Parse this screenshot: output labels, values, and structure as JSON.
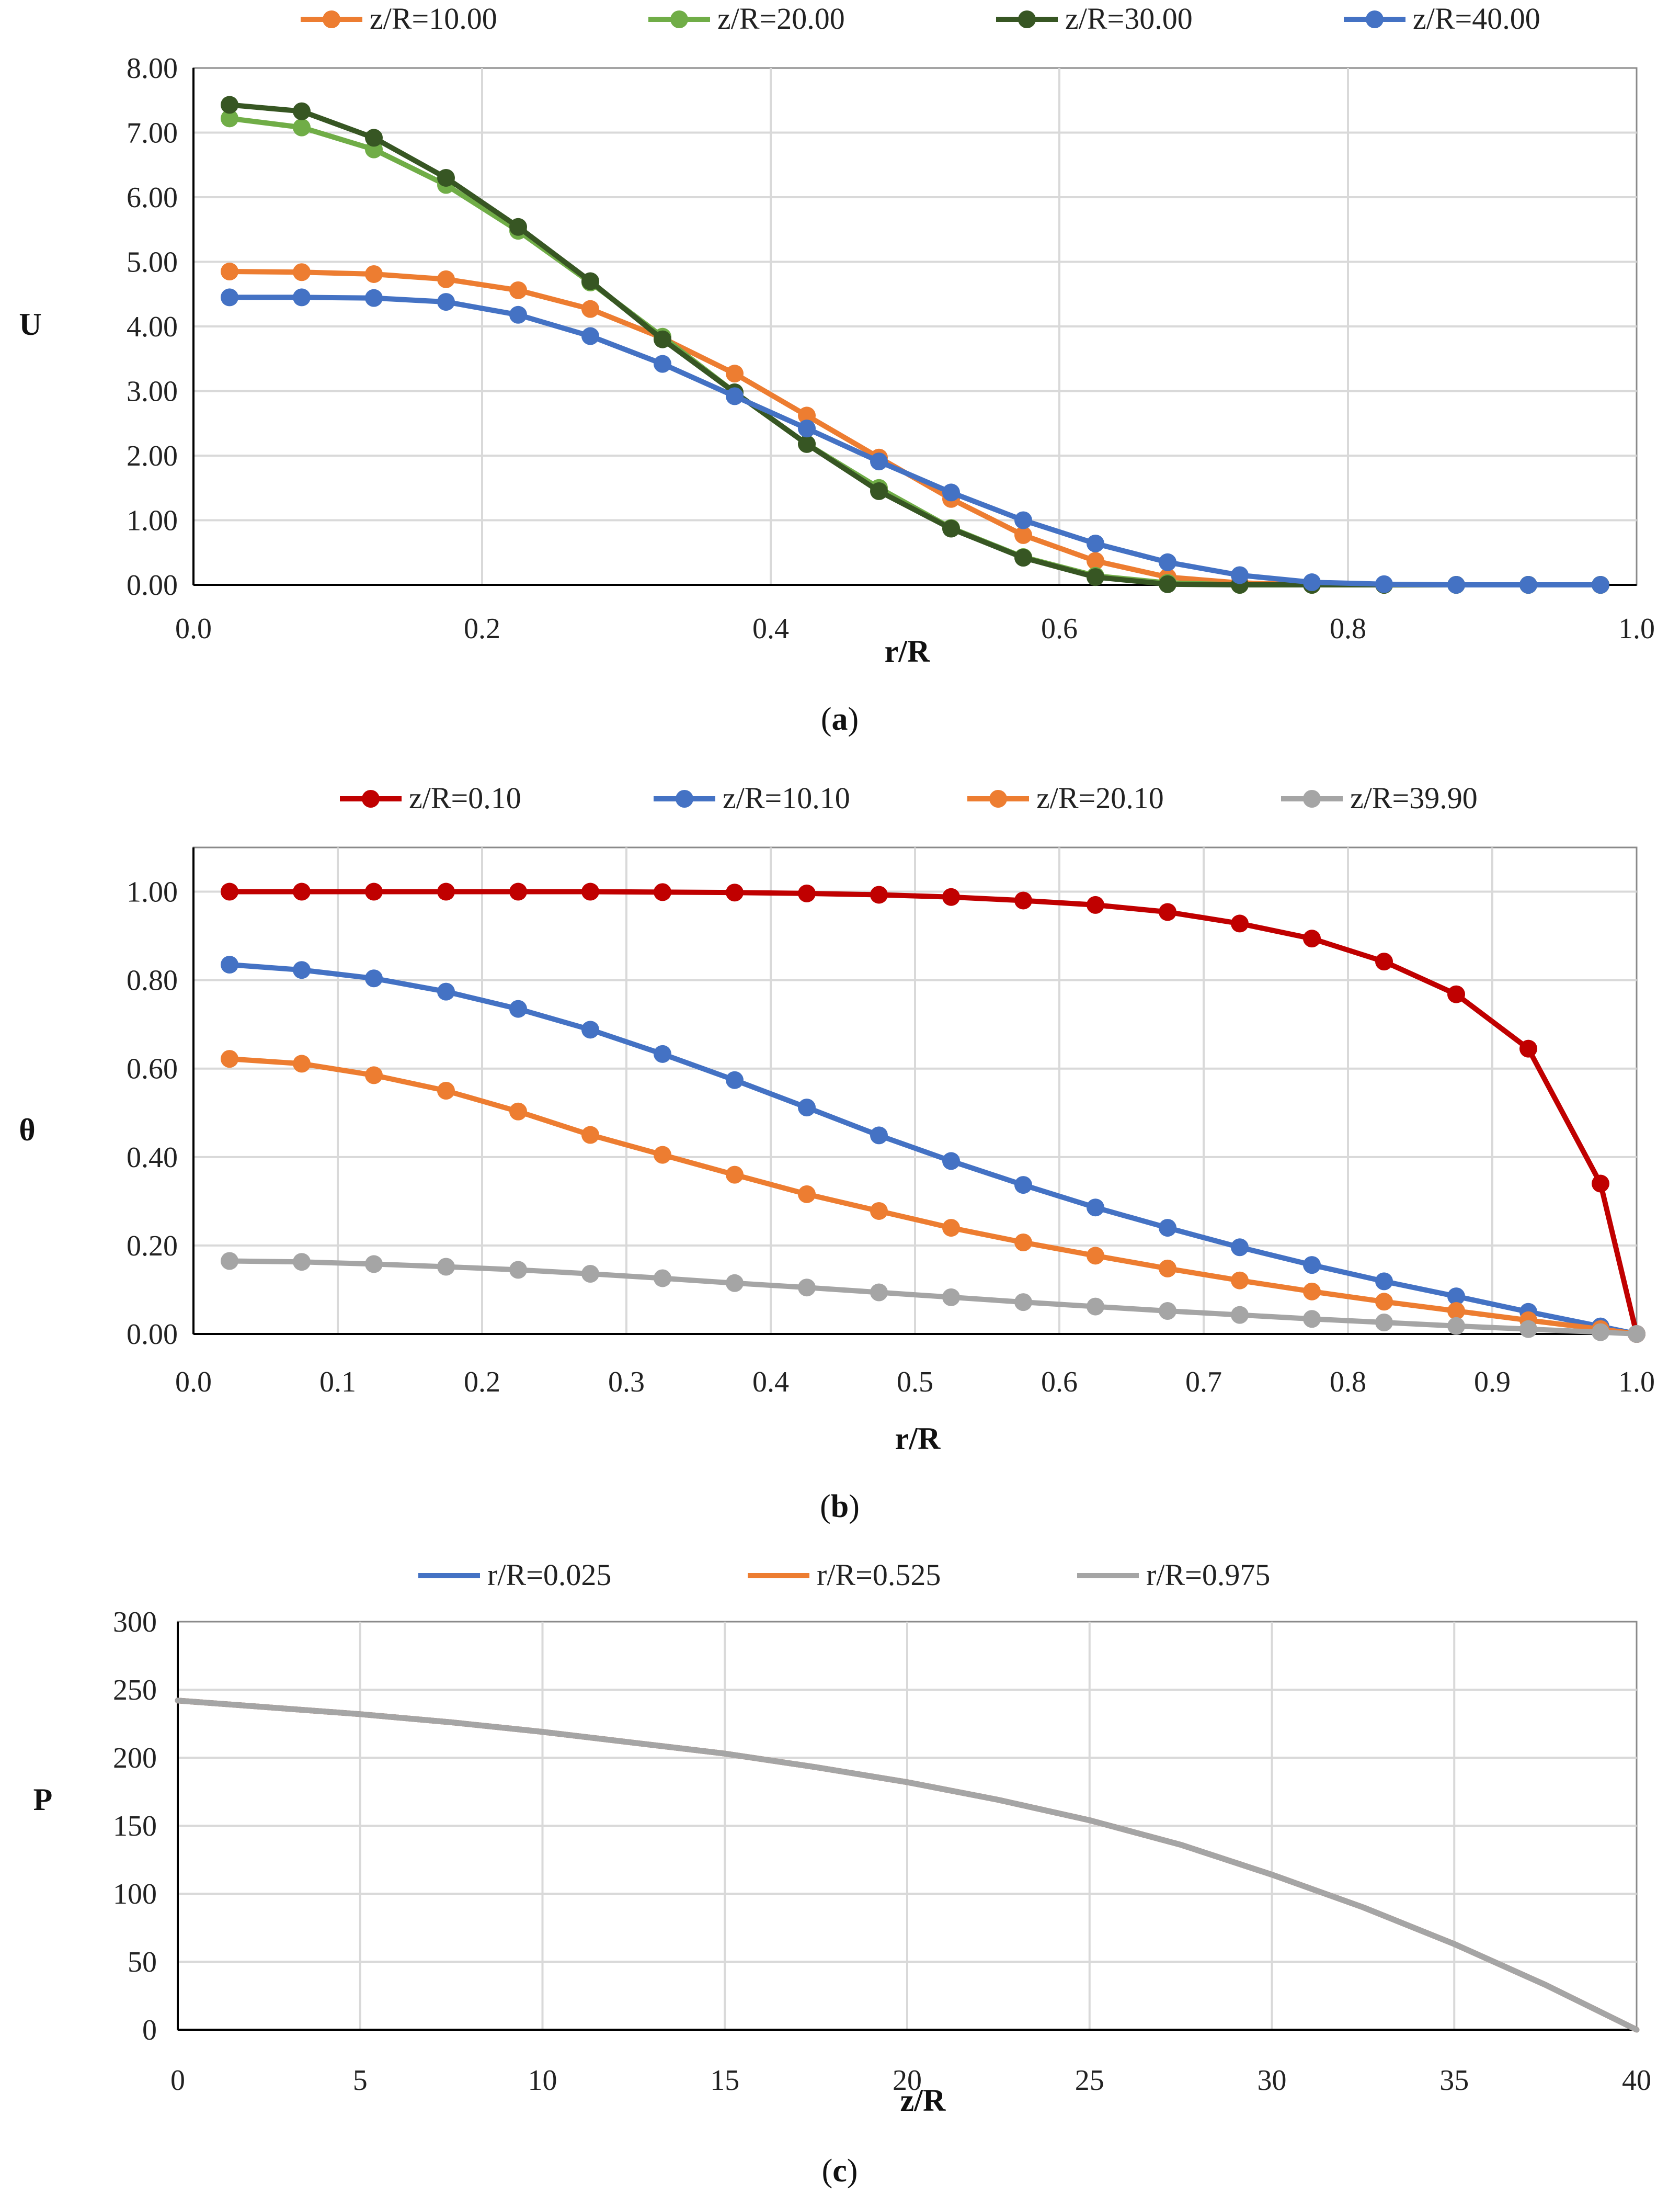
{
  "chart_data": [
    {
      "id": "a",
      "type": "line",
      "xlabel": "r/R",
      "ylabel": "U",
      "caption_letter": "a",
      "xlim": [
        0,
        1.0
      ],
      "ylim": [
        0,
        8
      ],
      "xticks": [
        0,
        0.2,
        0.4,
        0.6,
        0.8,
        1.0
      ],
      "xtick_labels": [
        "0.0",
        "0.2",
        "0.4",
        "0.6",
        "0.8",
        "1.0"
      ],
      "yticks": [
        0,
        1,
        2,
        3,
        4,
        5,
        6,
        7,
        8
      ],
      "ytick_labels": [
        "0.00",
        "1.00",
        "2.00",
        "3.00",
        "4.00",
        "5.00",
        "6.00",
        "7.00",
        "8.00"
      ],
      "grid": true,
      "legend_position": "top",
      "x": [
        0.025,
        0.075,
        0.125,
        0.175,
        0.225,
        0.275,
        0.325,
        0.375,
        0.425,
        0.475,
        0.525,
        0.575,
        0.625,
        0.675,
        0.725,
        0.775,
        0.825,
        0.875,
        0.925,
        0.975
      ],
      "series": [
        {
          "name": "z/R=10.00",
          "color": "#ED7D31",
          "markers": true,
          "values": [
            4.85,
            4.84,
            4.81,
            4.73,
            4.56,
            4.27,
            3.82,
            3.27,
            2.62,
            1.97,
            1.33,
            0.77,
            0.37,
            0.12,
            0.03,
            0.0,
            0.0,
            0.0,
            0.0,
            0.0
          ]
        },
        {
          "name": "z/R=20.00",
          "color": "#70AD47",
          "markers": true,
          "values": [
            7.22,
            7.08,
            6.74,
            6.19,
            5.48,
            4.68,
            3.84,
            2.98,
            2.18,
            1.5,
            0.88,
            0.43,
            0.14,
            0.03,
            0.0,
            0.0,
            0.0,
            0.0,
            0.0,
            0.0
          ]
        },
        {
          "name": "z/R=30.00",
          "color": "#375623",
          "markers": true,
          "values": [
            7.43,
            7.33,
            6.92,
            6.3,
            5.54,
            4.7,
            3.8,
            2.98,
            2.18,
            1.45,
            0.87,
            0.42,
            0.12,
            0.01,
            0.0,
            0.0,
            0.0,
            0.0,
            0.0,
            0.0
          ]
        },
        {
          "name": "z/R=40.00",
          "color": "#4472C4",
          "markers": true,
          "values": [
            4.45,
            4.45,
            4.44,
            4.38,
            4.18,
            3.85,
            3.42,
            2.92,
            2.42,
            1.91,
            1.43,
            1.0,
            0.64,
            0.35,
            0.15,
            0.04,
            0.01,
            0.0,
            0.0,
            0.0
          ]
        }
      ]
    },
    {
      "id": "b",
      "type": "line",
      "xlabel": "r/R",
      "ylabel": "θ",
      "caption_letter": "b",
      "xlim": [
        0,
        1.0
      ],
      "ylim": [
        0,
        1.1
      ],
      "xticks": [
        0,
        0.1,
        0.2,
        0.3,
        0.4,
        0.5,
        0.6,
        0.7,
        0.8,
        0.9,
        1.0
      ],
      "xtick_labels": [
        "0.0",
        "0.1",
        "0.2",
        "0.3",
        "0.4",
        "0.5",
        "0.6",
        "0.7",
        "0.8",
        "0.9",
        "1.0"
      ],
      "yticks": [
        0,
        0.2,
        0.4,
        0.6,
        0.8,
        1.0
      ],
      "ytick_labels": [
        "0.00",
        "0.20",
        "0.40",
        "0.60",
        "0.80",
        "1.00"
      ],
      "grid": true,
      "legend_position": "top",
      "x": [
        0.025,
        0.075,
        0.125,
        0.175,
        0.225,
        0.275,
        0.325,
        0.375,
        0.425,
        0.475,
        0.525,
        0.575,
        0.625,
        0.675,
        0.725,
        0.775,
        0.825,
        0.875,
        0.925,
        0.975,
        1.0
      ],
      "series": [
        {
          "name": "z/R=0.10",
          "color": "#C00000",
          "markers": true,
          "values": [
            1.0,
            1.0,
            1.0,
            1.0,
            1.0,
            1.0,
            0.999,
            0.998,
            0.996,
            0.993,
            0.988,
            0.98,
            0.97,
            0.954,
            0.928,
            0.894,
            0.842,
            0.768,
            0.645,
            0.34,
            0.0
          ]
        },
        {
          "name": "z/R=10.10",
          "color": "#4472C4",
          "markers": true,
          "values": [
            0.835,
            0.823,
            0.804,
            0.774,
            0.735,
            0.688,
            0.633,
            0.574,
            0.512,
            0.449,
            0.391,
            0.337,
            0.286,
            0.24,
            0.196,
            0.156,
            0.119,
            0.085,
            0.05,
            0.017,
            0.0
          ]
        },
        {
          "name": "z/R=20.10",
          "color": "#ED7D31",
          "markers": true,
          "values": [
            0.622,
            0.611,
            0.585,
            0.55,
            0.503,
            0.45,
            0.405,
            0.36,
            0.316,
            0.278,
            0.24,
            0.207,
            0.177,
            0.148,
            0.121,
            0.096,
            0.073,
            0.052,
            0.031,
            0.011,
            0.0
          ]
        },
        {
          "name": "z/R=39.90",
          "color": "#A5A5A5",
          "markers": true,
          "values": [
            0.165,
            0.163,
            0.158,
            0.152,
            0.145,
            0.136,
            0.126,
            0.115,
            0.105,
            0.094,
            0.083,
            0.072,
            0.062,
            0.052,
            0.043,
            0.034,
            0.026,
            0.018,
            0.011,
            0.004,
            0.0
          ]
        }
      ]
    },
    {
      "id": "c",
      "type": "line",
      "xlabel": "z/R",
      "ylabel": "P",
      "caption_letter": "c",
      "xlim": [
        0,
        40
      ],
      "ylim": [
        0,
        300
      ],
      "xticks": [
        0,
        5,
        10,
        15,
        20,
        25,
        30,
        35,
        40
      ],
      "xtick_labels": [
        "0",
        "5",
        "10",
        "15",
        "20",
        "25",
        "30",
        "35",
        "40"
      ],
      "yticks": [
        0,
        50,
        100,
        150,
        200,
        250,
        300
      ],
      "ytick_labels": [
        "0",
        "50",
        "100",
        "150",
        "200",
        "250",
        "300"
      ],
      "grid": true,
      "legend_position": "top",
      "x": [
        0,
        2.5,
        5,
        7.5,
        10,
        12.5,
        15,
        17.5,
        20,
        22.5,
        25,
        27.5,
        30,
        32.5,
        35,
        37.5,
        40
      ],
      "series": [
        {
          "name": "r/R=0.025",
          "color": "#4472C4",
          "markers": false,
          "values": [
            242,
            237,
            232,
            226,
            219,
            211,
            203,
            193,
            182,
            169,
            154,
            136,
            114,
            90,
            63,
            33,
            0
          ]
        },
        {
          "name": "r/R=0.525",
          "color": "#ED7D31",
          "markers": false,
          "values": [
            242,
            237,
            232,
            226,
            219,
            211,
            203,
            193,
            182,
            169,
            154,
            136,
            114,
            90,
            63,
            33,
            0
          ]
        },
        {
          "name": "r/R=0.975",
          "color": "#A5A5A5",
          "markers": false,
          "values": [
            242,
            237,
            232,
            226,
            219,
            211,
            203,
            193,
            182,
            169,
            154,
            136,
            114,
            90,
            63,
            33,
            0
          ]
        }
      ]
    }
  ]
}
